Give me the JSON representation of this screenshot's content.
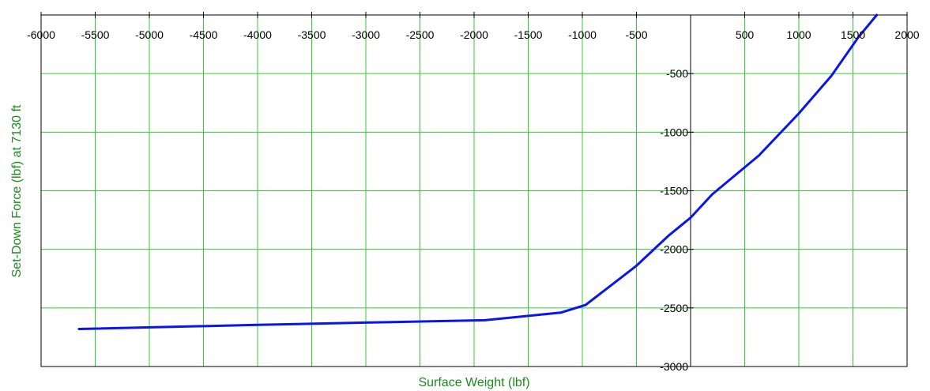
{
  "chart_data": {
    "type": "line",
    "title": "",
    "xlabel": "Surface Weight (lbf)",
    "ylabel": "Set-Down Force (lbf) at 7130 ft",
    "xlim": [
      -6000,
      2000
    ],
    "ylim": [
      -3000,
      0
    ],
    "xticks": [
      -6000,
      -5500,
      -5000,
      -4500,
      -4000,
      -3500,
      -3000,
      -2500,
      -2000,
      -1500,
      -1000,
      -500,
      500,
      1000,
      1500,
      2000
    ],
    "yticks": [
      -500,
      -1000,
      -1500,
      -2000,
      -2500,
      -3000
    ],
    "x_axis_position": "top",
    "y_axis_crosses_at_x": 0,
    "grid": true,
    "grid_color": "#33cc33",
    "series": [
      {
        "color": "#0a14ee",
        "x": [
          -5650,
          -4000,
          -3000,
          -1900,
          -1200,
          -970,
          -500,
          -200,
          0,
          200,
          630,
          1000,
          1300,
          1550,
          1720
        ],
        "y": [
          -2680,
          -2645,
          -2625,
          -2605,
          -2540,
          -2475,
          -2140,
          -1880,
          -1730,
          -1530,
          -1200,
          -840,
          -520,
          -190,
          0
        ]
      }
    ]
  }
}
